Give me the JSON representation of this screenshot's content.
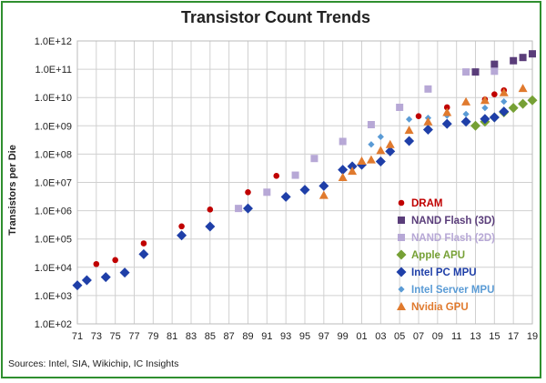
{
  "chart_data": {
    "type": "scatter",
    "title": "Transistor Count Trends",
    "ylabel": "Transistors per Die",
    "xlabel": "",
    "yscale": "log",
    "ylim": [
      100,
      1000000000000
    ],
    "xlim": [
      1971,
      2019
    ],
    "y_ticks": [
      "1.0E+02",
      "1.0E+03",
      "1.0E+04",
      "1.0E+05",
      "1.0E+06",
      "1.0E+07",
      "1.0E+08",
      "1.0E+09",
      "1.0E+10",
      "1.0E+11",
      "1.0E+12"
    ],
    "x_ticks": [
      {
        "year": 1971,
        "label": "71"
      },
      {
        "year": 1973,
        "label": "73"
      },
      {
        "year": 1975,
        "label": "75"
      },
      {
        "year": 1977,
        "label": "77"
      },
      {
        "year": 1979,
        "label": "79"
      },
      {
        "year": 1981,
        "label": "81"
      },
      {
        "year": 1983,
        "label": "83"
      },
      {
        "year": 1985,
        "label": "85"
      },
      {
        "year": 1987,
        "label": "87"
      },
      {
        "year": 1989,
        "label": "89"
      },
      {
        "year": 1991,
        "label": "91"
      },
      {
        "year": 1993,
        "label": "93"
      },
      {
        "year": 1995,
        "label": "95"
      },
      {
        "year": 1997,
        "label": "97"
      },
      {
        "year": 1999,
        "label": "99"
      },
      {
        "year": 2001,
        "label": "01"
      },
      {
        "year": 2003,
        "label": "03"
      },
      {
        "year": 2005,
        "label": "05"
      },
      {
        "year": 2007,
        "label": "07"
      },
      {
        "year": 2009,
        "label": "09"
      },
      {
        "year": 2011,
        "label": "11"
      },
      {
        "year": 2013,
        "label": "13"
      },
      {
        "year": 2015,
        "label": "15"
      },
      {
        "year": 2017,
        "label": "17"
      },
      {
        "year": 2019,
        "label": "19"
      }
    ],
    "grid": true,
    "legend_position": "bottom-right",
    "series": [
      {
        "name": "DRAM",
        "marker": "circle",
        "color": "#c00000",
        "points": [
          [
            1973,
            13000
          ],
          [
            1975,
            18000
          ],
          [
            1978,
            70000
          ],
          [
            1982,
            280000
          ],
          [
            1985,
            1100000
          ],
          [
            1989,
            4500000
          ],
          [
            1992,
            17000000
          ],
          [
            1996,
            70000000
          ],
          [
            1999,
            280000000
          ],
          [
            2002,
            1100000000
          ],
          [
            2007,
            2200000000
          ],
          [
            2010,
            4500000000
          ],
          [
            2014,
            8500000000
          ],
          [
            2015,
            13000000000
          ],
          [
            2016,
            18000000000
          ]
        ]
      },
      {
        "name": "NAND Flash (3D)",
        "marker": "square",
        "color": "#5a3d7a",
        "points": [
          [
            2013,
            80000000000
          ],
          [
            2015,
            150000000000
          ],
          [
            2017,
            200000000000
          ],
          [
            2018,
            260000000000
          ],
          [
            2019,
            350000000000
          ]
        ]
      },
      {
        "name": "NAND Flash (2D)",
        "marker": "square",
        "color": "#b7a8d6",
        "points": [
          [
            1988,
            1200000
          ],
          [
            1991,
            4500000
          ],
          [
            1994,
            18000000
          ],
          [
            1996,
            70000000
          ],
          [
            1999,
            280000000
          ],
          [
            2002,
            1100000000
          ],
          [
            2005,
            4500000000
          ],
          [
            2008,
            20000000000
          ],
          [
            2012,
            80000000000
          ],
          [
            2015,
            85000000000
          ]
        ]
      },
      {
        "name": "Apple APU",
        "marker": "diamond",
        "color": "#76a035",
        "points": [
          [
            2013,
            1000000000
          ],
          [
            2014,
            1400000000
          ],
          [
            2015,
            2000000000
          ],
          [
            2016,
            3000000000
          ],
          [
            2017,
            4300000000
          ],
          [
            2018,
            6000000000
          ],
          [
            2019,
            8000000000
          ]
        ]
      },
      {
        "name": "Intel PC MPU",
        "marker": "diamond",
        "color": "#1f3fa8",
        "points": [
          [
            1971,
            2300
          ],
          [
            1972,
            3500
          ],
          [
            1974,
            4500
          ],
          [
            1976,
            6500
          ],
          [
            1978,
            29000
          ],
          [
            1982,
            134000
          ],
          [
            1985,
            275000
          ],
          [
            1989,
            1200000
          ],
          [
            1993,
            3100000
          ],
          [
            1995,
            5500000
          ],
          [
            1997,
            7500000
          ],
          [
            1999,
            28000000
          ],
          [
            2000,
            37000000
          ],
          [
            2001,
            42000000
          ],
          [
            2003,
            55000000
          ],
          [
            2004,
            125000000
          ],
          [
            2006,
            291000000
          ],
          [
            2008,
            731000000
          ],
          [
            2010,
            1170000000
          ],
          [
            2012,
            1400000000
          ],
          [
            2014,
            1750000000
          ],
          [
            2015,
            2000000000
          ],
          [
            2016,
            3200000000
          ]
        ]
      },
      {
        "name": "Intel Server MPU",
        "marker": "diamond-small",
        "color": "#5a9bd5",
        "points": [
          [
            2002,
            220000000
          ],
          [
            2003,
            410000000
          ],
          [
            2006,
            1700000000
          ],
          [
            2008,
            1900000000
          ],
          [
            2010,
            2300000000
          ],
          [
            2012,
            2600000000
          ],
          [
            2014,
            4300000000
          ],
          [
            2016,
            7200000000
          ]
        ]
      },
      {
        "name": "Nvidia GPU",
        "marker": "triangle",
        "color": "#e07a2e",
        "points": [
          [
            1997,
            3500000
          ],
          [
            1999,
            15000000
          ],
          [
            2000,
            25000000
          ],
          [
            2001,
            57000000
          ],
          [
            2002,
            63000000
          ],
          [
            2003,
            135000000
          ],
          [
            2004,
            220000000
          ],
          [
            2006,
            700000000
          ],
          [
            2008,
            1400000000
          ],
          [
            2010,
            3000000000
          ],
          [
            2012,
            7100000000
          ],
          [
            2014,
            8000000000
          ],
          [
            2016,
            15000000000
          ],
          [
            2018,
            21000000000
          ]
        ]
      }
    ],
    "source": "Sources:  Intel, SIA, Wikichip, IC Insights"
  }
}
